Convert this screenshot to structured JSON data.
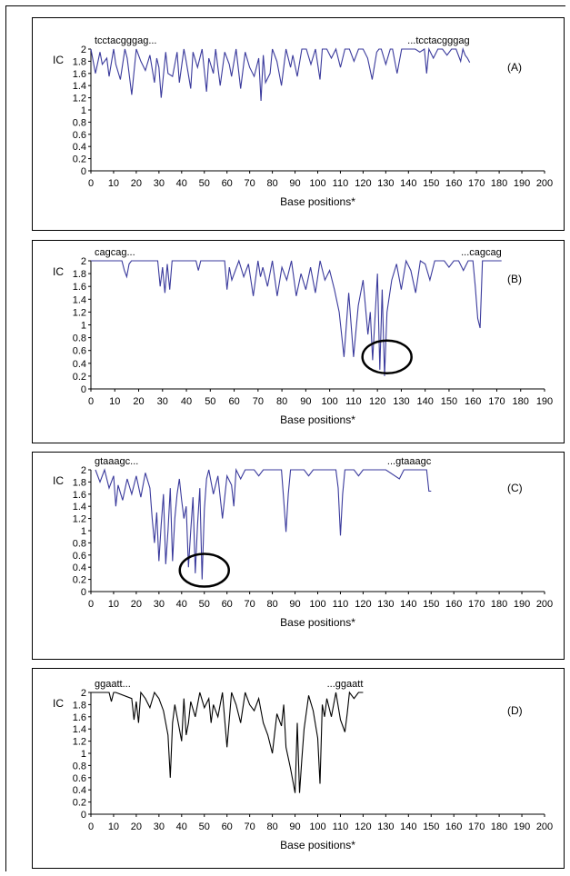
{
  "chart_data": [
    {
      "type": "line",
      "panel_label": "(A)",
      "seq_start": "tcctacgggag...",
      "seq_end": "...tcctacgggag",
      "ylabel": "IC",
      "xlabel": "Base positions*",
      "ylim": [
        0,
        2
      ],
      "yticks": [
        "0",
        "0.2",
        "0.4",
        "0.6",
        "0.8",
        "1",
        "1.2",
        "1.4",
        "1.6",
        "1.8",
        "2"
      ],
      "xlim": [
        0,
        200
      ],
      "xticks": [
        "0",
        "10",
        "20",
        "30",
        "40",
        "50",
        "60",
        "70",
        "80",
        "90",
        "100",
        "110",
        "120",
        "130",
        "140",
        "150",
        "160",
        "170",
        "180",
        "190",
        "200"
      ],
      "line_color": "#3a3a9c",
      "series": [
        {
          "x": [
            0,
            2,
            4,
            5,
            7,
            8,
            10,
            11,
            13,
            15,
            16,
            18,
            20,
            22,
            24,
            26,
            28,
            29,
            30,
            31,
            33,
            34,
            36,
            38,
            39,
            41,
            42,
            44,
            45,
            47,
            49,
            51,
            52,
            54,
            55,
            57,
            59,
            61,
            62,
            64,
            66,
            68,
            70,
            72,
            74,
            75,
            76,
            77,
            79,
            80,
            82,
            84,
            86,
            88,
            89,
            91,
            93,
            95,
            97,
            99,
            101,
            102,
            104,
            106,
            108,
            110,
            112,
            114,
            116,
            118,
            120,
            122,
            124,
            126,
            127,
            128,
            130,
            132,
            133,
            135,
            137,
            139,
            141,
            143,
            145,
            147,
            148,
            149,
            151,
            153,
            155,
            157,
            159,
            161,
            163,
            164,
            165,
            166,
            167
          ],
          "y": [
            2,
            1.6,
            1.95,
            1.75,
            1.85,
            1.55,
            2,
            1.75,
            1.5,
            2,
            1.85,
            1.25,
            2,
            1.8,
            1.65,
            1.9,
            1.45,
            1.85,
            1.7,
            1.2,
            1.95,
            1.6,
            1.55,
            1.95,
            1.45,
            2,
            1.8,
            1.35,
            1.95,
            1.7,
            2,
            1.3,
            1.85,
            1.6,
            2,
            1.4,
            1.95,
            1.75,
            1.55,
            2,
            1.35,
            1.95,
            1.7,
            1.55,
            1.85,
            1.15,
            1.9,
            1.45,
            1.6,
            2,
            1.8,
            1.4,
            2,
            1.7,
            1.9,
            1.55,
            2,
            2,
            1.75,
            2,
            1.5,
            2,
            2,
            1.85,
            2,
            1.7,
            2,
            2,
            1.8,
            2,
            2,
            1.85,
            1.5,
            1.95,
            2,
            2,
            1.75,
            2,
            2,
            1.6,
            2,
            2,
            2,
            2,
            1.95,
            2,
            1.6,
            2,
            1.85,
            2,
            2,
            1.9,
            2,
            2,
            1.8,
            2,
            1.9,
            1.85,
            1.78
          ]
        }
      ]
    },
    {
      "type": "line",
      "panel_label": "(B)",
      "seq_start": "cagcag...",
      "seq_end": "...cagcag",
      "ylabel": "IC",
      "xlabel": "Base positions*",
      "ylim": [
        0,
        2
      ],
      "yticks": [
        "0",
        "0.2",
        "0.4",
        "0.6",
        "0.8",
        "1",
        "1.2",
        "1.4",
        "1.6",
        "1.8",
        "2"
      ],
      "xlim": [
        0,
        190
      ],
      "xticks": [
        "0",
        "10",
        "20",
        "30",
        "40",
        "50",
        "60",
        "70",
        "80",
        "90",
        "100",
        "110",
        "120",
        "130",
        "140",
        "150",
        "160",
        "170",
        "180",
        "190"
      ],
      "line_color": "#3a3a9c",
      "series": [
        {
          "x": [
            0,
            13,
            14,
            15,
            16,
            17,
            28,
            29,
            30,
            31,
            32,
            33,
            34,
            44,
            45,
            46,
            56,
            57,
            58,
            59,
            62,
            64,
            66,
            68,
            70,
            71,
            72,
            74,
            76,
            78,
            80,
            82,
            84,
            86,
            88,
            90,
            92,
            94,
            96,
            98,
            100,
            102,
            104,
            106,
            108,
            110,
            112,
            114,
            116,
            117,
            118,
            120,
            121,
            122,
            123,
            124,
            126,
            128,
            130,
            132,
            134,
            136,
            138,
            140,
            142,
            144,
            146,
            148,
            150,
            152,
            154,
            156,
            158,
            160,
            161,
            162,
            163,
            164,
            172
          ],
          "y": [
            2,
            2,
            1.85,
            1.75,
            1.95,
            2,
            2,
            1.6,
            1.9,
            1.5,
            1.95,
            1.55,
            2,
            2,
            1.85,
            2,
            2,
            1.55,
            1.9,
            1.7,
            2,
            1.75,
            1.95,
            1.45,
            2,
            1.75,
            1.9,
            1.6,
            2,
            1.45,
            1.9,
            1.7,
            2,
            1.45,
            1.8,
            1.55,
            1.9,
            1.5,
            2,
            1.7,
            1.85,
            1.55,
            1.2,
            0.5,
            1.5,
            0.5,
            1.3,
            1.7,
            0.85,
            1.2,
            0.45,
            1.8,
            0.3,
            1.55,
            0.2,
            1.2,
            1.7,
            1.95,
            1.55,
            2,
            1.85,
            1.5,
            2,
            1.95,
            1.7,
            2,
            2,
            2,
            1.9,
            2,
            2,
            1.85,
            2,
            2,
            1.6,
            1.1,
            0.95,
            2,
            2
          ]
        }
      ],
      "highlight": {
        "x": 124,
        "y": 0.5
      }
    },
    {
      "type": "line",
      "panel_label": "(C)",
      "seq_start": "gtaaagc...",
      "seq_end": "...gtaaagc",
      "ylabel": "IC",
      "xlabel": "Base positions*",
      "ylim": [
        0,
        2
      ],
      "yticks": [
        "0",
        "0.2",
        "0.4",
        "0.6",
        "0.8",
        "1",
        "1.2",
        "1.4",
        "1.6",
        "1.8",
        "2"
      ],
      "xlim": [
        0,
        200
      ],
      "xticks": [
        "0",
        "10",
        "20",
        "30",
        "40",
        "50",
        "60",
        "70",
        "80",
        "90",
        "100",
        "110",
        "120",
        "130",
        "140",
        "150",
        "160",
        "170",
        "180",
        "190",
        "200"
      ],
      "line_color": "#3a3a9c",
      "series": [
        {
          "x": [
            2,
            4,
            6,
            8,
            10,
            11,
            12,
            14,
            16,
            18,
            20,
            22,
            24,
            26,
            27,
            28,
            29,
            30,
            31,
            32,
            33,
            34,
            35,
            36,
            37,
            38,
            39,
            40,
            41,
            42,
            43,
            44,
            45,
            46,
            47,
            48,
            49,
            50,
            51,
            52,
            54,
            56,
            58,
            60,
            62,
            63,
            64,
            66,
            68,
            70,
            72,
            74,
            76,
            78,
            80,
            84,
            85,
            86,
            87,
            88,
            90,
            94,
            96,
            98,
            100,
            104,
            108,
            109,
            110,
            111,
            112,
            116,
            118,
            120,
            122,
            124,
            130,
            136,
            138,
            140,
            146,
            148,
            149,
            150
          ],
          "y": [
            2,
            1.8,
            2,
            1.7,
            1.9,
            1.4,
            1.75,
            1.5,
            1.85,
            1.6,
            1.9,
            1.55,
            1.95,
            1.7,
            1.2,
            0.8,
            1.3,
            0.5,
            1.1,
            1.6,
            0.45,
            1.0,
            1.7,
            0.5,
            1.2,
            1.6,
            1.85,
            1.5,
            1.2,
            1.4,
            0.4,
            1.0,
            1.55,
            0.3,
            1.1,
            1.7,
            0.2,
            1.35,
            1.85,
            2,
            1.6,
            1.9,
            1.2,
            1.9,
            1.75,
            1.4,
            2,
            1.85,
            2,
            2,
            2,
            1.9,
            2,
            2,
            2,
            2,
            1.5,
            0.98,
            1.6,
            2,
            2,
            2,
            1.9,
            2,
            2,
            2,
            2,
            1.7,
            0.92,
            1.6,
            2,
            2,
            1.9,
            2,
            2,
            2,
            2,
            1.85,
            2,
            2,
            2,
            2,
            1.65,
            1.65
          ]
        }
      ],
      "highlight": {
        "x": 50,
        "y": 0.35
      }
    },
    {
      "type": "line",
      "panel_label": "(D)",
      "seq_start": "ggaatt...",
      "seq_end": "...ggaatt",
      "ylabel": "IC",
      "xlabel": "Base positions*",
      "ylim": [
        0,
        2
      ],
      "yticks": [
        "0",
        "0.2",
        "0.4",
        "0.6",
        "0.8",
        "1",
        "1.2",
        "1.4",
        "1.6",
        "1.8",
        "2"
      ],
      "xlim": [
        0,
        200
      ],
      "xticks": [
        "0",
        "10",
        "20",
        "30",
        "40",
        "50",
        "60",
        "70",
        "80",
        "90",
        "100",
        "110",
        "120",
        "130",
        "140",
        "150",
        "160",
        "170",
        "180",
        "190",
        "200"
      ],
      "line_color": "#000000",
      "series": [
        {
          "x": [
            0,
            8,
            9,
            10,
            11,
            18,
            19,
            20,
            21,
            22,
            24,
            26,
            28,
            30,
            32,
            34,
            35,
            36,
            37,
            38,
            40,
            41,
            42,
            43,
            44,
            46,
            48,
            50,
            52,
            53,
            54,
            56,
            58,
            60,
            62,
            64,
            66,
            68,
            70,
            72,
            74,
            76,
            78,
            80,
            82,
            84,
            85,
            86,
            88,
            90,
            91,
            92,
            93,
            94,
            96,
            98,
            100,
            101,
            102,
            103,
            104,
            106,
            108,
            110,
            112,
            113,
            114,
            116,
            118,
            120
          ],
          "y": [
            2,
            2,
            1.85,
            2,
            2,
            1.9,
            1.55,
            1.85,
            1.5,
            2,
            1.9,
            1.75,
            2,
            1.9,
            1.7,
            1.3,
            0.6,
            1.5,
            1.8,
            1.6,
            1.2,
            1.9,
            1.3,
            1.5,
            1.85,
            1.6,
            2,
            1.75,
            1.9,
            1.5,
            1.8,
            1.6,
            2,
            1.1,
            2,
            1.8,
            1.5,
            2,
            1.8,
            1.7,
            1.9,
            1.5,
            1.3,
            1.0,
            1.65,
            1.45,
            1.8,
            1.1,
            0.75,
            0.35,
            1.5,
            0.35,
            0.9,
            1.4,
            1.95,
            1.7,
            1.25,
            0.5,
            1.8,
            1.6,
            1.9,
            1.6,
            2,
            1.55,
            1.35,
            1.65,
            2,
            1.9,
            2,
            2
          ]
        }
      ]
    }
  ]
}
